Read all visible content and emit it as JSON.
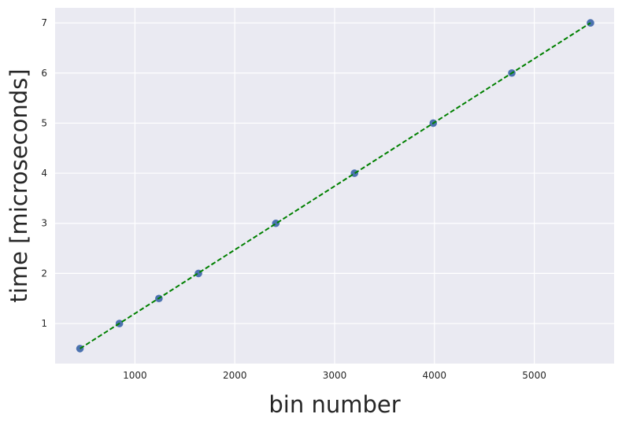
{
  "chart_data": {
    "type": "scatter",
    "title": "",
    "xlabel": "bin number",
    "ylabel": "time [microseconds]",
    "xlim": [
      200,
      5800
    ],
    "ylim": [
      0.2,
      7.3
    ],
    "xticks": [
      1000,
      2000,
      3000,
      4000,
      5000
    ],
    "yticks": [
      1,
      2,
      3,
      4,
      5,
      6,
      7
    ],
    "grid": true,
    "colors": {
      "background": "#eaeaf2",
      "grid": "#ffffff",
      "points": "#4c72b0",
      "fit_line": "#008000"
    },
    "series": [
      {
        "kind": "points",
        "x": [
          449,
          844,
          1240,
          1636,
          2411,
          3199,
          3988,
          4775,
          5563
        ],
        "y": [
          0.5,
          1,
          1.5,
          2,
          3,
          4,
          5,
          6,
          7
        ]
      },
      {
        "kind": "fit-line",
        "style": "dashed",
        "x": [
          449,
          5563
        ],
        "y": [
          0.5,
          7
        ]
      }
    ]
  }
}
